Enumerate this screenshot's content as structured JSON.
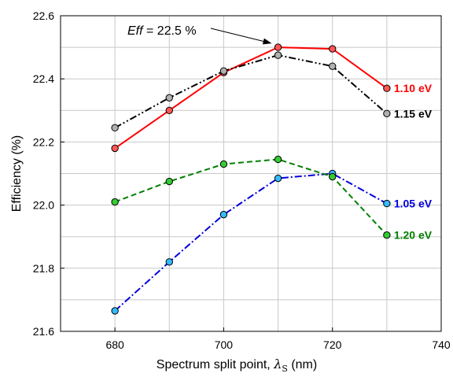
{
  "chart_data": {
    "type": "line",
    "xlabel": "Spectrum split point, λ_S (nm)",
    "xlabel_main": "Spectrum split point, ",
    "xlabel_symbol": "λ",
    "xlabel_subscript": "S",
    "xlabel_unit": " (nm)",
    "ylabel": "Efficiency (%)",
    "xlim": [
      670,
      740
    ],
    "ylim": [
      21.6,
      22.6
    ],
    "xticks": [
      680,
      700,
      720,
      740
    ],
    "yticks": [
      21.6,
      21.8,
      22.0,
      22.2,
      22.4,
      22.6
    ],
    "xtick_labels": [
      "680",
      "700",
      "720",
      "740"
    ],
    "ytick_labels": [
      "21.6",
      "21.8",
      "22.0",
      "22.2",
      "22.4",
      "22.6"
    ],
    "grid": true,
    "legend": "inline-right",
    "x": [
      680,
      690,
      700,
      710,
      720,
      730
    ],
    "series": [
      {
        "name": "1.10 eV",
        "values": [
          22.18,
          22.3,
          22.42,
          22.5,
          22.495,
          22.37
        ],
        "color": "#ff0000",
        "marker_fill": "#ff5555",
        "dash": "solid"
      },
      {
        "name": "1.15 eV",
        "values": [
          22.245,
          22.34,
          22.425,
          22.475,
          22.44,
          22.29
        ],
        "color": "#000000",
        "marker_fill": "#b0b0b0",
        "dash": "dashdotdot"
      },
      {
        "name": "1.05 eV",
        "values": [
          21.665,
          21.82,
          21.97,
          22.085,
          22.1,
          22.005
        ],
        "color": "#0000dd",
        "marker_fill": "#33bbff",
        "dash": "dashdot"
      },
      {
        "name": "1.20 eV",
        "values": [
          22.01,
          22.075,
          22.13,
          22.145,
          22.09,
          21.905
        ],
        "color": "#008000",
        "marker_fill": "#33cc33",
        "dash": "dashed"
      }
    ],
    "annotation": {
      "italic": "Eff",
      "text": " = 22.5 %",
      "target_x": 710,
      "target_y": 22.5
    }
  }
}
